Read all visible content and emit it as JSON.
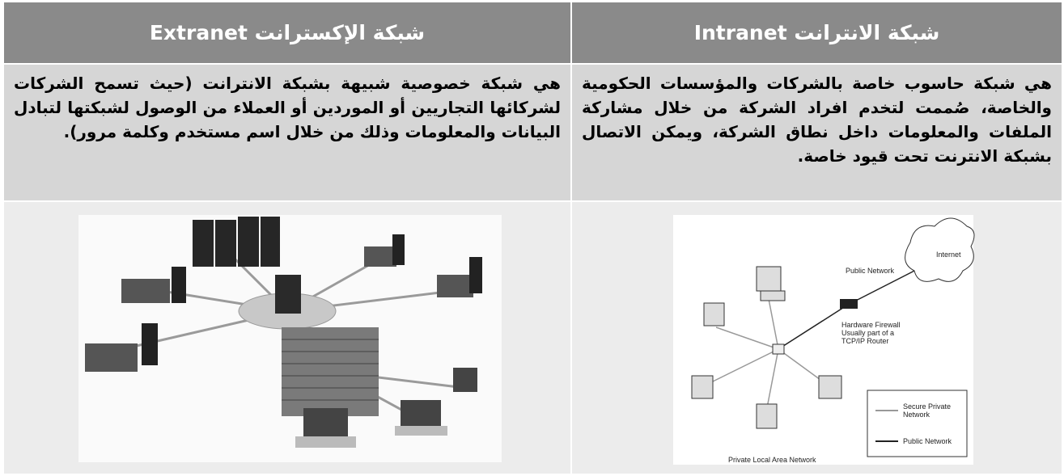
{
  "table": {
    "header": [
      "شبكة الانترانت Intranet",
      "شبكة الإكسترانت Extranet"
    ],
    "rows": [
      [
        "هي شبكة حاسوب خاصة بالشركات والمؤسسات الحكومية والخاصة، صُممت لتخدم افراد الشركة من خلال مشاركة الملفات والمعلومات داخل نطاق الشركة، ويمكن الاتصال بشبكة الانترنت تحت قيود خاصة.",
        "هي شبكة خصوصية شبيهة بشبكة الانترانت (حيث تسمح الشركات لشركائها التجاريين أو الموردين أو العملاء من الوصول لشبكتها لتبادل البيانات والمعلومات وذلك من خلال اسم مستخدم وكلمة مرور)."
      ]
    ]
  },
  "intranet_diagram": {
    "cloud": "Internet",
    "public_network": "Public Network",
    "firewall": [
      "Hardware Firewall",
      "Usually part of a",
      "TCP/IP Router"
    ],
    "legend": [
      [
        "Secure Private",
        "Network"
      ],
      [
        "Public Network"
      ]
    ],
    "lan": "Private Local Area Network"
  }
}
